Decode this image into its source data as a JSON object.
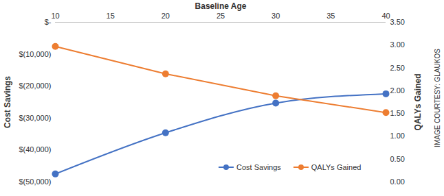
{
  "chart_data": {
    "type": "line",
    "xlabel": "Baseline Age",
    "ylabel": "Cost Savings",
    "y2label": "QALYs Gained",
    "annotation": "IMAGE COURTESY: GLAUKOS",
    "x": [
      10,
      20,
      30,
      40
    ],
    "xlim": [
      10,
      40
    ],
    "xticks": [
      10,
      15,
      20,
      25,
      30,
      35,
      40
    ],
    "ylim": [
      -50000,
      0
    ],
    "yticks": [
      {
        "value": -50000,
        "label": "$(50,000)"
      },
      {
        "value": -40000,
        "label": "$(40,000)"
      },
      {
        "value": -30000,
        "label": "$(30,000)"
      },
      {
        "value": -20000,
        "label": "$(20,000)"
      },
      {
        "value": -10000,
        "label": "$(10,000)"
      },
      {
        "value": 0,
        "label": "$-"
      }
    ],
    "y2lim": [
      0,
      3.5
    ],
    "y2ticks": [
      {
        "value": 0,
        "label": "0.00"
      },
      {
        "value": 0.5,
        "label": "0.50"
      },
      {
        "value": 1,
        "label": "1.00"
      },
      {
        "value": 1.5,
        "label": "1.50"
      },
      {
        "value": 2,
        "label": "2.00"
      },
      {
        "value": 2.5,
        "label": "2.50"
      },
      {
        "value": 3,
        "label": "3.00"
      },
      {
        "value": 3.5,
        "label": "3.50"
      }
    ],
    "grid": false,
    "legend": "bottom",
    "series": [
      {
        "name": "Cost Savings",
        "color": "#4472c4",
        "values": [
          -47500,
          -34600,
          -25300,
          -22400
        ],
        "marker": "circle",
        "line_style": "smooth"
      },
      {
        "name": "QALYs Gained",
        "color": "#ed7d31",
        "axis": "y2",
        "values": [
          2.97,
          2.37,
          1.89,
          1.52
        ],
        "marker": "circle",
        "line_style": "solid"
      }
    ]
  }
}
